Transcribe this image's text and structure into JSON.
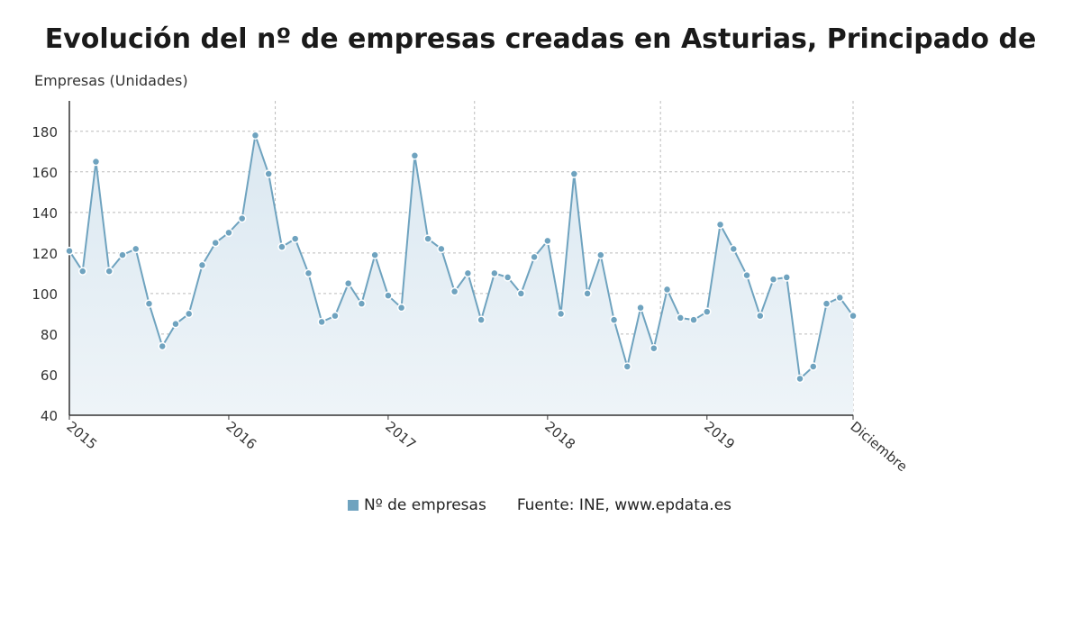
{
  "title": "Evolución del nº de empresas creadas en Asturias, Principado de",
  "colors": {
    "series": "#6fa3bf",
    "fill_top": "#dbe8f1",
    "fill_bottom": "#eef4f8",
    "grid": "#bbbbbb"
  },
  "legend": {
    "series_label": "Nº de empresas",
    "source": "Fuente: INE, www.epdata.es"
  },
  "chart_data": {
    "type": "line",
    "title": "Evolución del nº de empresas creadas en Asturias, Principado de",
    "ylabel": "Empresas (Unidades)",
    "xlabel": "",
    "ylim": [
      40,
      195
    ],
    "yticks": [
      40,
      60,
      80,
      100,
      120,
      140,
      160,
      180
    ],
    "x_tick_labels": [
      {
        "index": 0,
        "label": "2015"
      },
      {
        "index": 12,
        "label": "2016"
      },
      {
        "index": 24,
        "label": "2017"
      },
      {
        "index": 36,
        "label": "2018"
      },
      {
        "index": 48,
        "label": "2019"
      },
      {
        "index": 59,
        "label": "Diciembre"
      }
    ],
    "grid": true,
    "legend_position": "bottom",
    "series": [
      {
        "name": "Nº de empresas",
        "values": [
          121,
          111,
          165,
          111,
          119,
          122,
          95,
          74,
          85,
          90,
          114,
          125,
          130,
          137,
          178,
          159,
          123,
          127,
          110,
          86,
          89,
          105,
          95,
          119,
          99,
          93,
          168,
          127,
          122,
          101,
          110,
          87,
          110,
          108,
          100,
          118,
          126,
          90,
          159,
          100,
          119,
          87,
          64,
          93,
          73,
          102,
          88,
          87,
          91,
          134,
          122,
          109,
          89,
          107,
          108,
          58,
          64,
          95,
          98,
          89
        ]
      }
    ]
  }
}
